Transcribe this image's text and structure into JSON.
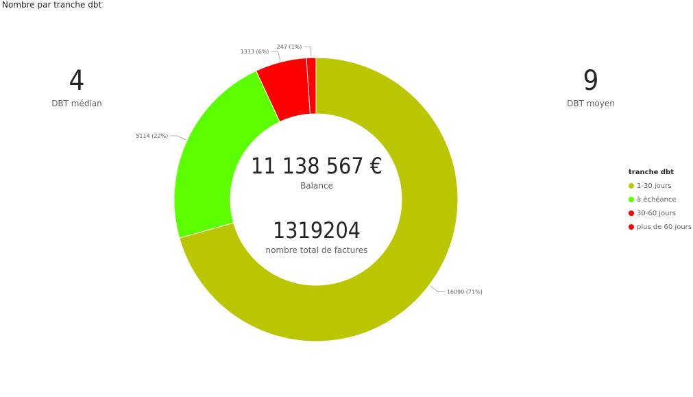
{
  "visual_title": "Nombre par tranche dbt",
  "kpis": {
    "median": {
      "value": "4",
      "label": "DBT médian"
    },
    "mean": {
      "value": "9",
      "label": "DBT moyen"
    }
  },
  "center": {
    "balance_value": "11 138 567 €",
    "balance_label": "Balance",
    "invoices_value": "1319204",
    "invoices_label": "nombre total de factures"
  },
  "chart_data": {
    "type": "pie",
    "donut": true,
    "title": "",
    "legend_title": "tranche dbt",
    "legend_position": "right",
    "categories": [
      "1-30 jours",
      "à échéance",
      "30-60 jours",
      "plus de 60 jours"
    ],
    "values": [
      16090,
      5114,
      1333,
      247
    ],
    "data_labels": [
      "16090 (71%)",
      "5114 (22%)",
      "1333 (6%)",
      "247 (1%)"
    ],
    "colors": [
      "#B9C600",
      "#5BFF00",
      "#FF0000",
      "#FF0000"
    ]
  }
}
